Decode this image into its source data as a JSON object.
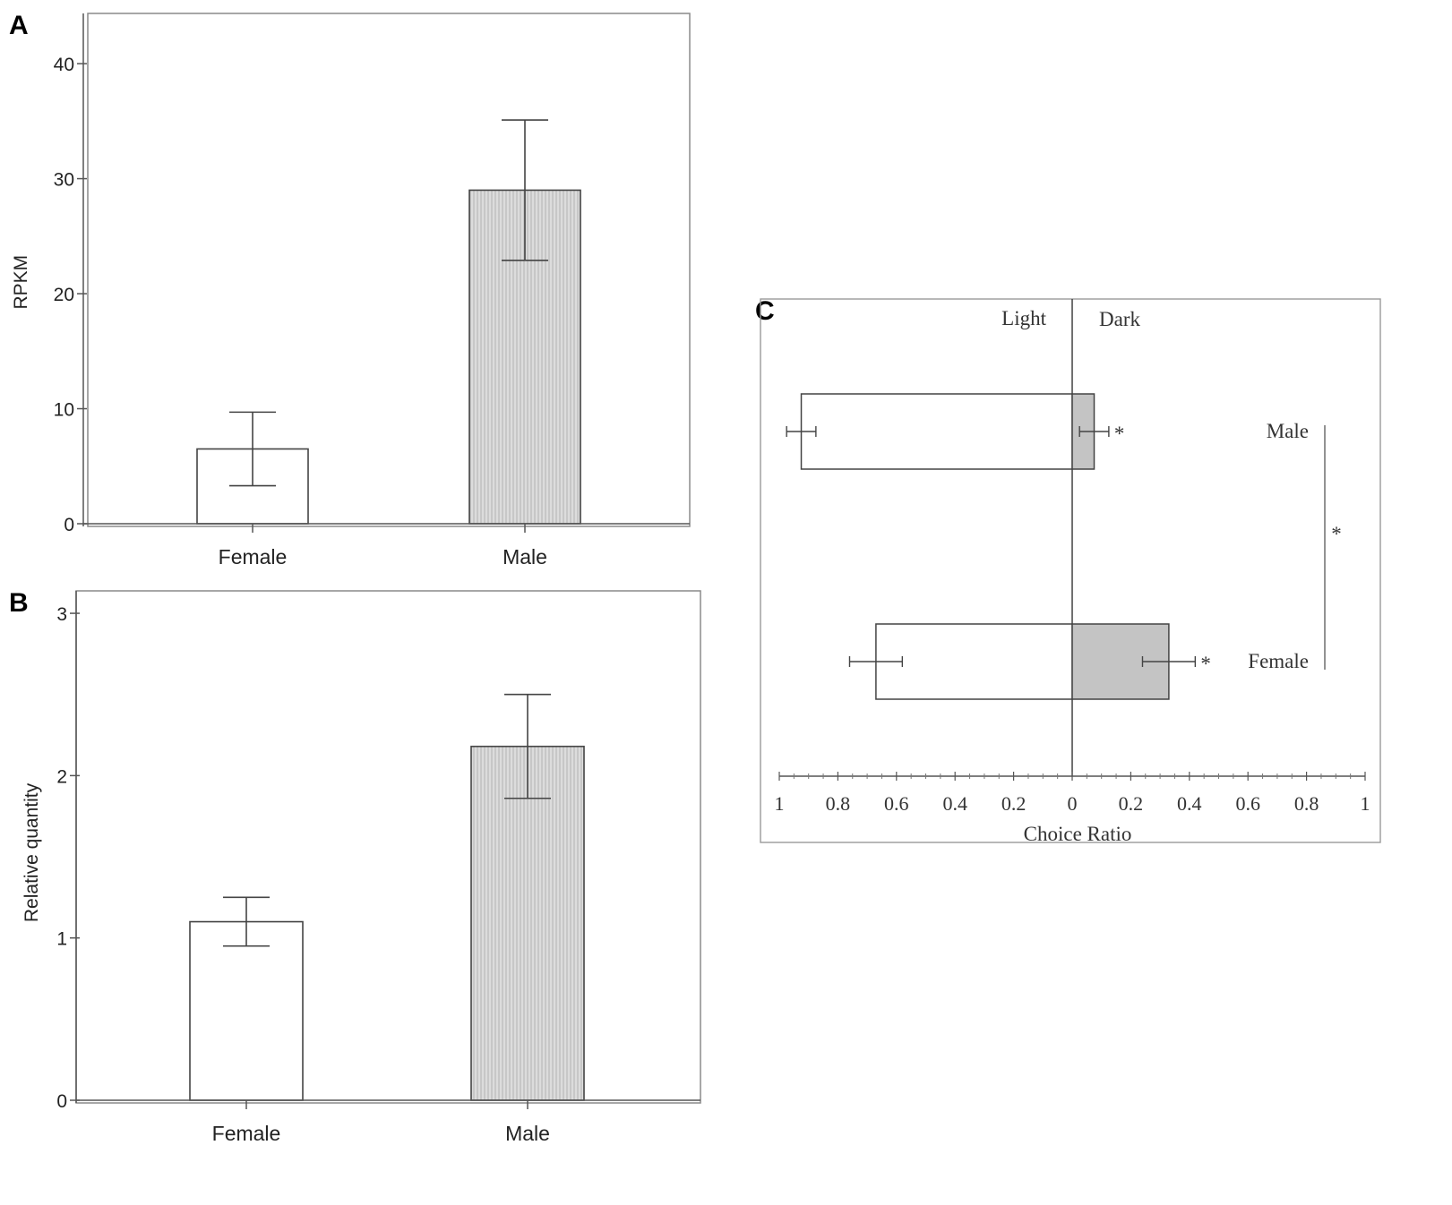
{
  "panels": {
    "a": {
      "letter": "A"
    },
    "b": {
      "letter": "B"
    },
    "c": {
      "letter": "C"
    }
  },
  "colors": {
    "hatch": "#d9d9d9",
    "hatch_line": "#bdbdbd",
    "dark_bar": "#c4c4c4",
    "frame": "#555555"
  },
  "chart_data": [
    {
      "type": "bar",
      "panel": "A",
      "categories": [
        "Female",
        "Male"
      ],
      "values": [
        6.5,
        29.0
      ],
      "error": [
        3.2,
        6.1
      ],
      "ylabel": "RPKM",
      "ylim": [
        0,
        42
      ],
      "yticks": [
        0,
        10,
        20,
        30,
        40
      ],
      "bar_styles": [
        "plain",
        "hatched"
      ]
    },
    {
      "type": "bar",
      "panel": "B",
      "categories": [
        "Female",
        "Male"
      ],
      "values": [
        1.1,
        2.18
      ],
      "error": [
        0.15,
        0.32
      ],
      "ylabel": "Relative quantity",
      "ylim": [
        0,
        3.05
      ],
      "yticks": [
        0,
        1,
        2,
        3
      ],
      "bar_styles": [
        "plain",
        "hatched"
      ]
    },
    {
      "type": "bar",
      "orientation": "horizontal-diverging",
      "panel": "C",
      "categories": [
        "Male",
        "Female"
      ],
      "light_label": "Light",
      "dark_label": "Dark",
      "xlabel": "Choice Ratio",
      "xlim": [
        -1,
        1
      ],
      "xticks": [
        -1,
        -0.8,
        -0.6,
        -0.4,
        -0.2,
        0,
        0.2,
        0.4,
        0.6,
        0.8,
        1
      ],
      "xtick_labels": [
        "1",
        "0.8",
        "0.6",
        "0.4",
        "0.2",
        "0",
        "0.2",
        "0.4",
        "0.6",
        "0.8",
        "1"
      ],
      "series": [
        {
          "side": "Light",
          "values": [
            0.925,
            0.67
          ],
          "error": [
            0.05,
            0.09
          ]
        },
        {
          "side": "Dark",
          "values": [
            0.075,
            0.33
          ],
          "error": [
            0.05,
            0.09
          ]
        }
      ],
      "bar_marks": [
        "*",
        "*"
      ],
      "group_mark": "*"
    }
  ]
}
